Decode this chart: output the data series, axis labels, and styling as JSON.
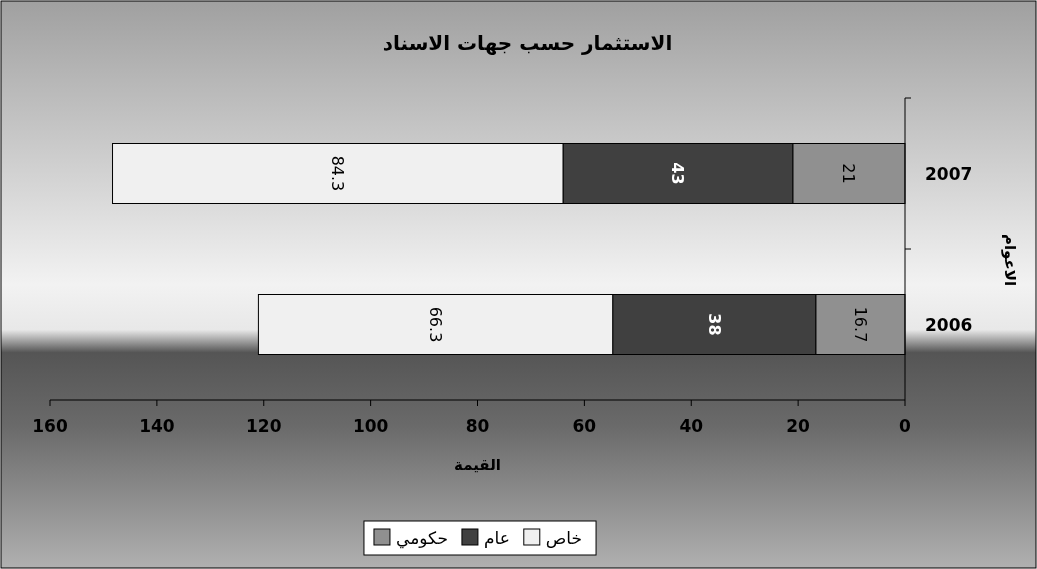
{
  "chart_data": {
    "type": "bar",
    "orientation": "horizontal",
    "stacked": true,
    "title": "الاستثمار حسب جهات الاسناد",
    "xlabel": "القيمة",
    "ylabel": "الاعوام",
    "categories": [
      "2007",
      "2006"
    ],
    "series": [
      {
        "name": "حكومي",
        "color": "#909090",
        "values": [
          21,
          16.7
        ]
      },
      {
        "name": "عام",
        "color": "#404040",
        "values": [
          43,
          38
        ]
      },
      {
        "name": "خاص",
        "color": "#f0f0f0",
        "values": [
          84.3,
          66.3
        ]
      }
    ],
    "xlim": [
      160,
      0
    ],
    "xticks": [
      0,
      20,
      40,
      60,
      80,
      100,
      120,
      140,
      160
    ],
    "data_labels": true,
    "legend": "bottom",
    "grid": false
  }
}
